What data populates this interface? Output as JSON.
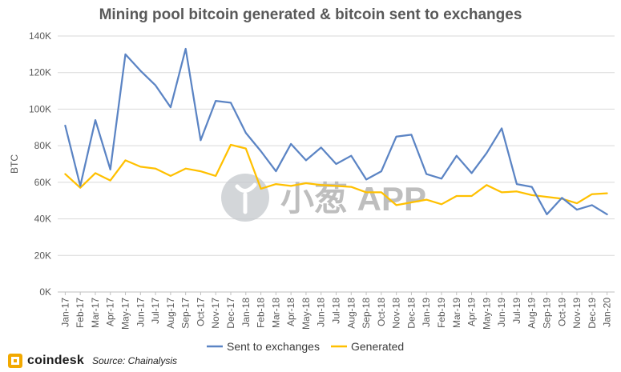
{
  "title": "Mining pool bitcoin generated & bitcoin sent to exchanges",
  "watermark": {
    "text": "小葱 APP",
    "color": "#b3b3b3"
  },
  "footer": {
    "brand": "coindesk",
    "source": "Source: Chainalysis",
    "brand_color": "#f2a900"
  },
  "chart_data": {
    "type": "line",
    "title": "Mining pool bitcoin generated & bitcoin sent to exchanges",
    "ylabel": "BTC",
    "xlabel": "",
    "ylim": [
      0,
      140000
    ],
    "yticks": [
      0,
      20000,
      40000,
      60000,
      80000,
      100000,
      120000,
      140000
    ],
    "ytick_labels": [
      "0K",
      "20K",
      "40K",
      "60K",
      "80K",
      "100K",
      "120K",
      "140K"
    ],
    "grid": true,
    "legend_position": "bottom",
    "categories": [
      "Jan-17",
      "Feb-17",
      "Mar-17",
      "Apr-17",
      "May-17",
      "Jun-17",
      "Jul-17",
      "Aug-17",
      "Sep-17",
      "Oct-17",
      "Nov-17",
      "Dec-17",
      "Jan-18",
      "Feb-18",
      "Mar-18",
      "Apr-18",
      "May-18",
      "Jun-18",
      "Jul-18",
      "Aug-18",
      "Sep-18",
      "Oct-18",
      "Nov-18",
      "Dec-18",
      "Jan-19",
      "Feb-19",
      "Mar-19",
      "Apr-19",
      "May-19",
      "Jun-19",
      "Jul-19",
      "Aug-19",
      "Sep-19",
      "Oct-19",
      "Nov-19",
      "Dec-19",
      "Jan-20"
    ],
    "series": [
      {
        "name": "Sent to exchanges",
        "color": "#5b84c4",
        "values": [
          91000,
          58000,
          94000,
          67000,
          130000,
          121000,
          113000,
          101000,
          133000,
          83000,
          104500,
          103500,
          87000,
          77000,
          66000,
          81000,
          72000,
          79000,
          70000,
          74500,
          61500,
          66000,
          85000,
          86000,
          64500,
          62000,
          74500,
          65000,
          76000,
          89500,
          59000,
          57500,
          42500,
          51500,
          45000,
          47500,
          42500
        ]
      },
      {
        "name": "Generated",
        "color": "#ffc000",
        "values": [
          64500,
          57000,
          65000,
          61000,
          72000,
          68500,
          67500,
          63500,
          67500,
          66000,
          63500,
          80500,
          78500,
          56500,
          59000,
          58000,
          59500,
          58500,
          58000,
          57500,
          54500,
          54500,
          47500,
          49000,
          50500,
          48000,
          52500,
          52500,
          58500,
          54500,
          55000,
          53000,
          52000,
          51000,
          48500,
          53500,
          54000
        ]
      }
    ]
  }
}
